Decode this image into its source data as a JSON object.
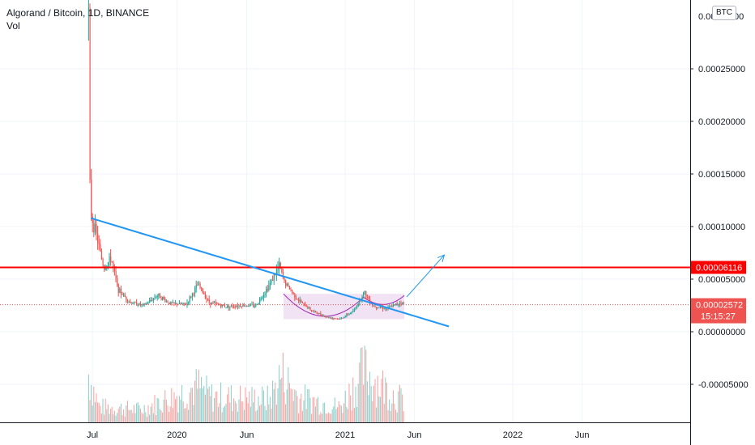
{
  "header": {
    "title": "Algorand / Bitcoin, 1D, BINANCE",
    "volume_label": "Vol",
    "currency_badge": "BTC"
  },
  "colors": {
    "up": "#26a69a",
    "down": "#ef5350",
    "trendline": "#2196f3",
    "resistance": "#ff0000",
    "price_line": "#ef5350",
    "cup_fill": "#e1bee7",
    "cup_stroke": "#9c27b0",
    "grid": "#f0f3fa"
  },
  "chart_data": {
    "type": "candlestick",
    "pair": "ALGO/BTC",
    "interval": "1D",
    "exchange": "BINANCE",
    "y_ticks": [
      "0.00025000",
      "0.00020000",
      "0.00015000",
      "0.00010000",
      "0.00005000",
      "0.00000000",
      "-0.00005000"
    ],
    "y_top_partial_label": "0.000",
    "y_top_partial_suffix": ".00",
    "x_ticks": [
      "Jul",
      "2020",
      "Jun",
      "2021",
      "Jun",
      "2022",
      "Jun"
    ],
    "price_path": [
      [
        "2019-06-22",
        0.0003
      ],
      [
        "2019-06-23",
        0.00021
      ],
      [
        "2019-06-25",
        0.00013
      ],
      [
        "2019-06-28",
        0.00011
      ],
      [
        "2019-07-10",
        9e-05
      ],
      [
        "2019-07-25",
        6e-05
      ],
      [
        "2019-08-10",
        7e-05
      ],
      [
        "2019-08-25",
        4e-05
      ],
      [
        "2019-09-20",
        2.8e-05
      ],
      [
        "2019-10-20",
        2.5e-05
      ],
      [
        "2019-11-20",
        3.5e-05
      ],
      [
        "2019-12-15",
        2.7e-05
      ],
      [
        "2020-01-20",
        2.6e-05
      ],
      [
        "2020-02-15",
        4.5e-05
      ],
      [
        "2020-03-10",
        2.8e-05
      ],
      [
        "2020-04-15",
        2.4e-05
      ],
      [
        "2020-05-20",
        2.5e-05
      ],
      [
        "2020-06-20",
        2.5e-05
      ],
      [
        "2020-07-20",
        4.5e-05
      ],
      [
        "2020-08-10",
        6.3e-05
      ],
      [
        "2020-08-20",
        4.8e-05
      ],
      [
        "2020-09-20",
        3e-05
      ],
      [
        "2020-10-20",
        2e-05
      ],
      [
        "2020-11-20",
        1.4e-05
      ],
      [
        "2020-12-20",
        1.2e-05
      ],
      [
        "2021-01-20",
        2e-05
      ],
      [
        "2021-02-10",
        3.8e-05
      ],
      [
        "2021-03-01",
        2.5e-05
      ],
      [
        "2021-04-01",
        2.2e-05
      ],
      [
        "2021-05-01",
        2.8e-05
      ],
      [
        "2021-05-10",
        2.572e-05
      ]
    ],
    "volume_profile": [
      [
        "2019-06-22",
        0.95
      ],
      [
        "2019-07-15",
        0.3
      ],
      [
        "2019-10-15",
        0.25
      ],
      [
        "2020-02-15",
        0.7
      ],
      [
        "2020-03-15",
        0.5
      ],
      [
        "2020-07-20",
        0.45
      ],
      [
        "2020-08-15",
        0.95
      ],
      [
        "2020-09-20",
        0.5
      ],
      [
        "2020-12-20",
        0.3
      ],
      [
        "2021-02-10",
        1.0
      ],
      [
        "2021-04-15",
        0.55
      ],
      [
        "2021-05-10",
        0.4
      ]
    ],
    "annotations": {
      "resistance_level": {
        "value": 6.116e-05,
        "label": "0.00006116"
      },
      "current_price": {
        "value": 2.572e-05,
        "label": "0.00002572",
        "countdown": "15:15:27"
      },
      "trendline": [
        [
          "2019-06-28",
          0.000108
        ],
        [
          "2021-08-15",
          5e-06
        ]
      ],
      "breakout_arrow": [
        [
          "2021-05-15",
          3.3e-05
        ],
        [
          "2021-08-05",
          7.3e-05
        ]
      ],
      "cup_range": [
        [
          "2020-08-20",
          "2021-05-10"
        ],
        [
          1.2e-05,
          3.6e-05
        ]
      ]
    }
  }
}
